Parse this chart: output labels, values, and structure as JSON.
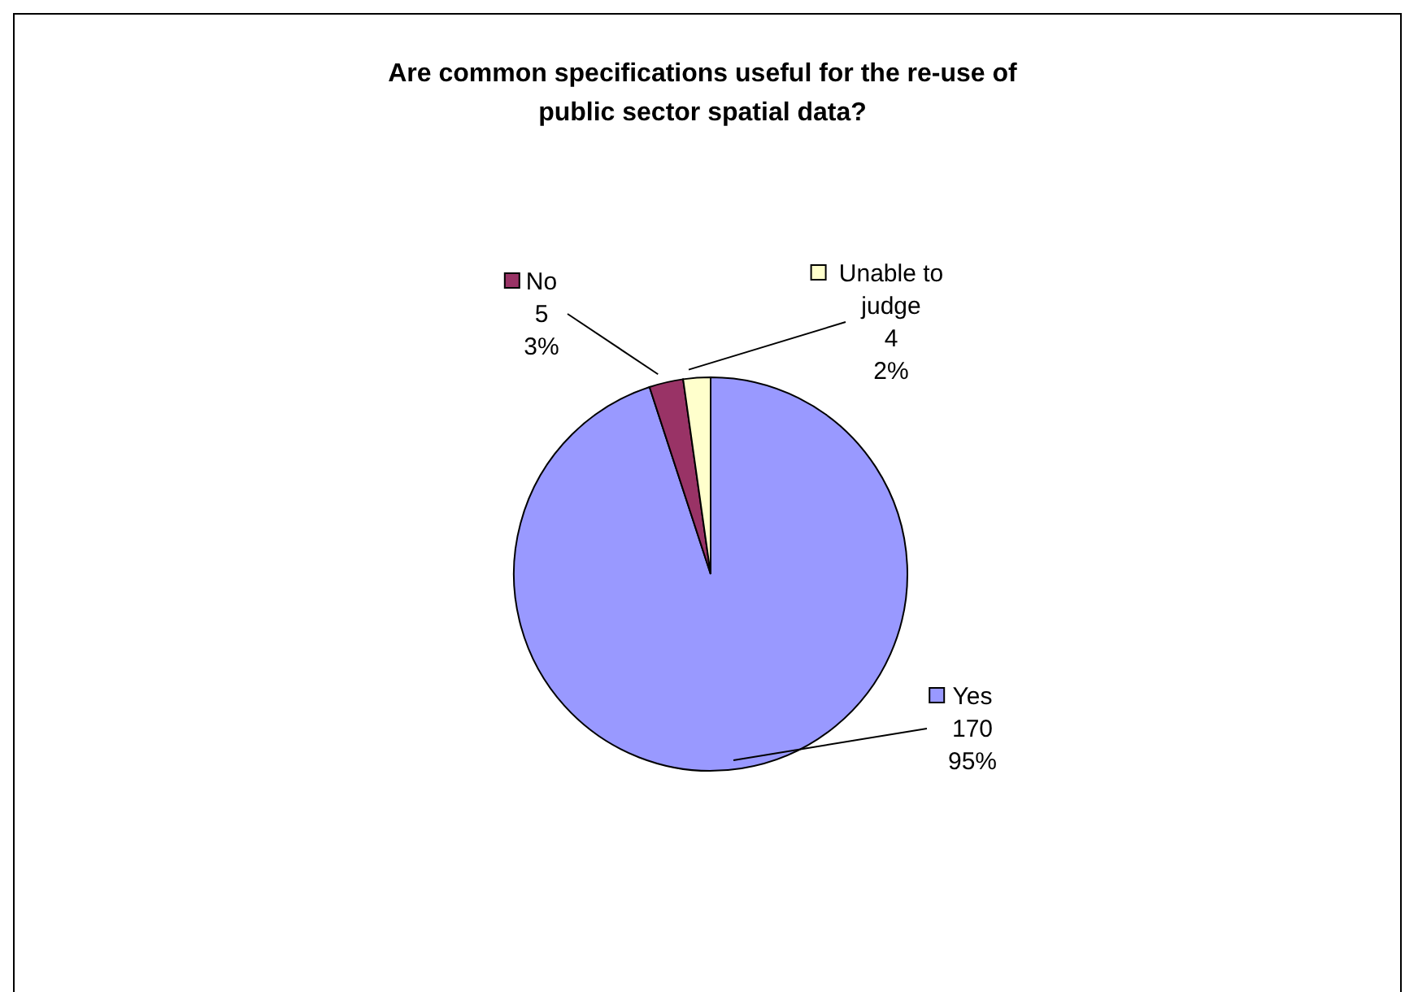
{
  "chart_data": {
    "type": "pie",
    "title": "Are common specifications useful for the re-use of public sector spatial data?",
    "categories": [
      "Yes",
      "No",
      "Unable to judge"
    ],
    "values": [
      170,
      5,
      4
    ],
    "colors": [
      "#9999ff",
      "#993366",
      "#ffffcc"
    ],
    "value_labels": [
      "170\n95%",
      "5\n3%",
      "4\n2%"
    ],
    "legend": "right"
  }
}
